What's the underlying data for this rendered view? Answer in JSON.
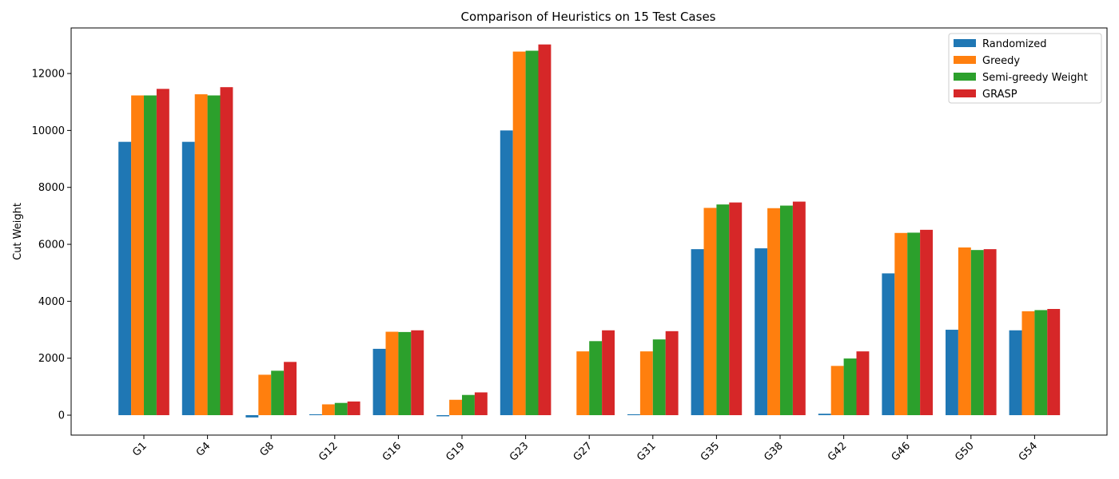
{
  "chart_data": {
    "type": "bar",
    "title": "Comparison of Heuristics on 15 Test Cases",
    "xlabel": "",
    "ylabel": "Cut Weight",
    "categories": [
      "G1",
      "G4",
      "G8",
      "G12",
      "G16",
      "G19",
      "G23",
      "G27",
      "G31",
      "G35",
      "G38",
      "G42",
      "G46",
      "G50",
      "G54"
    ],
    "ylim": [
      -700,
      13600
    ],
    "yticks": [
      0,
      2000,
      4000,
      6000,
      8000,
      10000,
      12000
    ],
    "legend_position": "top-right",
    "grid": false,
    "series": [
      {
        "name": "Randomized",
        "color": "#1f77b4",
        "values": [
          9600,
          9600,
          -80,
          30,
          2330,
          -40,
          10000,
          0,
          30,
          5830,
          5860,
          50,
          4980,
          3000,
          2980
        ]
      },
      {
        "name": "Greedy",
        "color": "#ff7f0e",
        "values": [
          11230,
          11270,
          1420,
          380,
          2930,
          540,
          12770,
          2240,
          2240,
          7280,
          7270,
          1730,
          6400,
          5890,
          3650
        ]
      },
      {
        "name": "Semi-greedy Weight",
        "color": "#2ca02c",
        "values": [
          11230,
          11230,
          1560,
          430,
          2920,
          710,
          12800,
          2600,
          2660,
          7400,
          7360,
          1990,
          6410,
          5800,
          3690
        ]
      },
      {
        "name": "GRASP",
        "color": "#d62728",
        "values": [
          11460,
          11520,
          1870,
          480,
          2980,
          800,
          13020,
          2980,
          2950,
          7470,
          7500,
          2240,
          6510,
          5830,
          3730
        ]
      }
    ]
  }
}
